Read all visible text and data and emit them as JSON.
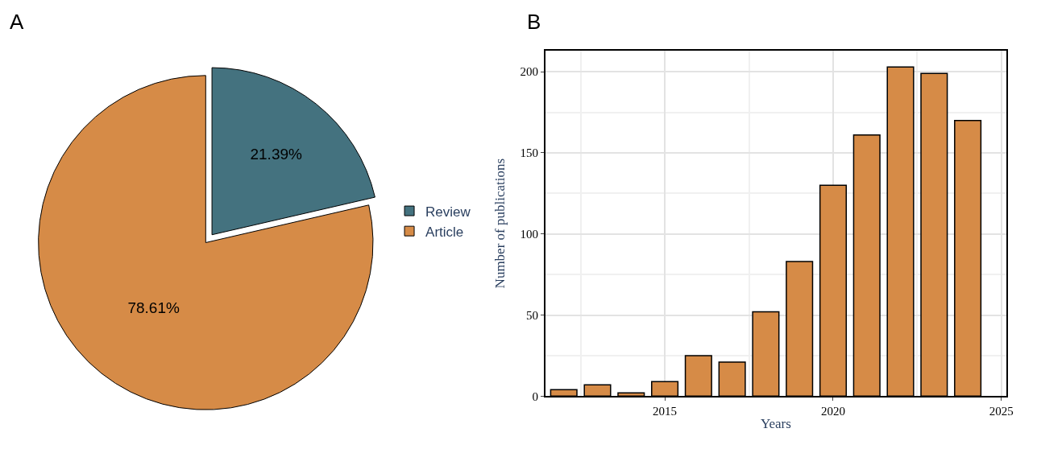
{
  "chart_data": [
    {
      "type": "pie",
      "categories": [
        "Review",
        "Article"
      ],
      "values": [
        21.39,
        78.61
      ],
      "colors": [
        "#44727f",
        "#d68b47"
      ],
      "value_labels": [
        "21.39%",
        "78.61%"
      ],
      "legend": "right",
      "annotations": [
        "A"
      ]
    },
    {
      "type": "bar",
      "x": [
        2012,
        2013,
        2014,
        2015,
        2016,
        2017,
        2018,
        2019,
        2020,
        2021,
        2022,
        2023,
        2024
      ],
      "values": [
        4,
        7,
        2,
        9,
        25,
        21,
        52,
        83,
        130,
        161,
        203,
        199,
        170
      ],
      "color": "#d68b47",
      "xlabel": "Years",
      "ylabel": "Number of publications",
      "xlim": [
        2011.45,
        2025.15
      ],
      "xticks": [
        2015,
        2020,
        2025
      ],
      "ylim": [
        0,
        213
      ],
      "yticks": [
        0,
        50,
        100,
        150,
        200
      ],
      "grid": true,
      "annotations": [
        "B"
      ]
    }
  ]
}
